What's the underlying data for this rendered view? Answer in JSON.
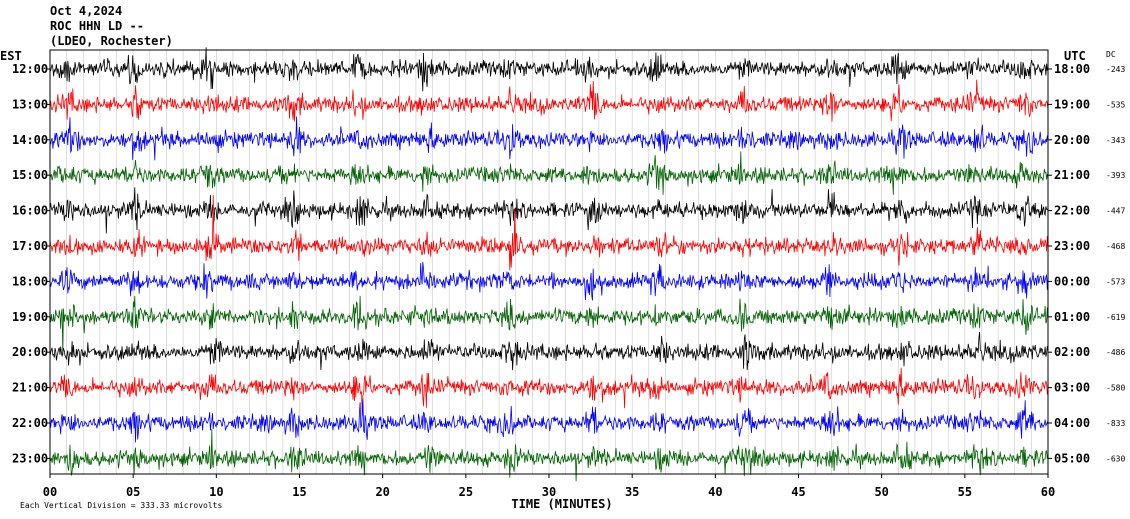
{
  "header": {
    "date": "Oct 4,2024",
    "station": "ROC HHN LD --",
    "location": "(LDEO, Rochester)"
  },
  "chart_data": {
    "type": "line",
    "title": "",
    "xlabel": "TIME (MINUTES)",
    "left_axis_label": "EST",
    "right_axis_label": "UTC",
    "dc_label": "DC",
    "xlim": [
      0,
      60
    ],
    "x_ticks": [
      "00",
      "05",
      "10",
      "15",
      "20",
      "25",
      "30",
      "35",
      "40",
      "45",
      "50",
      "55",
      "60"
    ],
    "scale_note": "Each Vertical Division = 333.33 microvolts",
    "colors_cycle": [
      "#000000",
      "#ff0000",
      "#0000ff",
      "#006400"
    ],
    "rows": [
      {
        "est": "12:00",
        "utc": "18:00",
        "dc": "-243"
      },
      {
        "est": "13:00",
        "utc": "19:00",
        "dc": "-535"
      },
      {
        "est": "14:00",
        "utc": "20:00",
        "dc": "-343"
      },
      {
        "est": "15:00",
        "utc": "21:00",
        "dc": "-393"
      },
      {
        "est": "16:00",
        "utc": "22:00",
        "dc": "-447"
      },
      {
        "est": "17:00",
        "utc": "23:00",
        "dc": "-468"
      },
      {
        "est": "18:00",
        "utc": "00:00",
        "dc": "-573"
      },
      {
        "est": "19:00",
        "utc": "01:00",
        "dc": "-619"
      },
      {
        "est": "20:00",
        "utc": "02:00",
        "dc": "-486"
      },
      {
        "est": "21:00",
        "utc": "03:00",
        "dc": "-580"
      },
      {
        "est": "22:00",
        "utc": "04:00",
        "dc": "-833"
      },
      {
        "est": "23:00",
        "utc": "05:00",
        "dc": "-630"
      }
    ]
  }
}
